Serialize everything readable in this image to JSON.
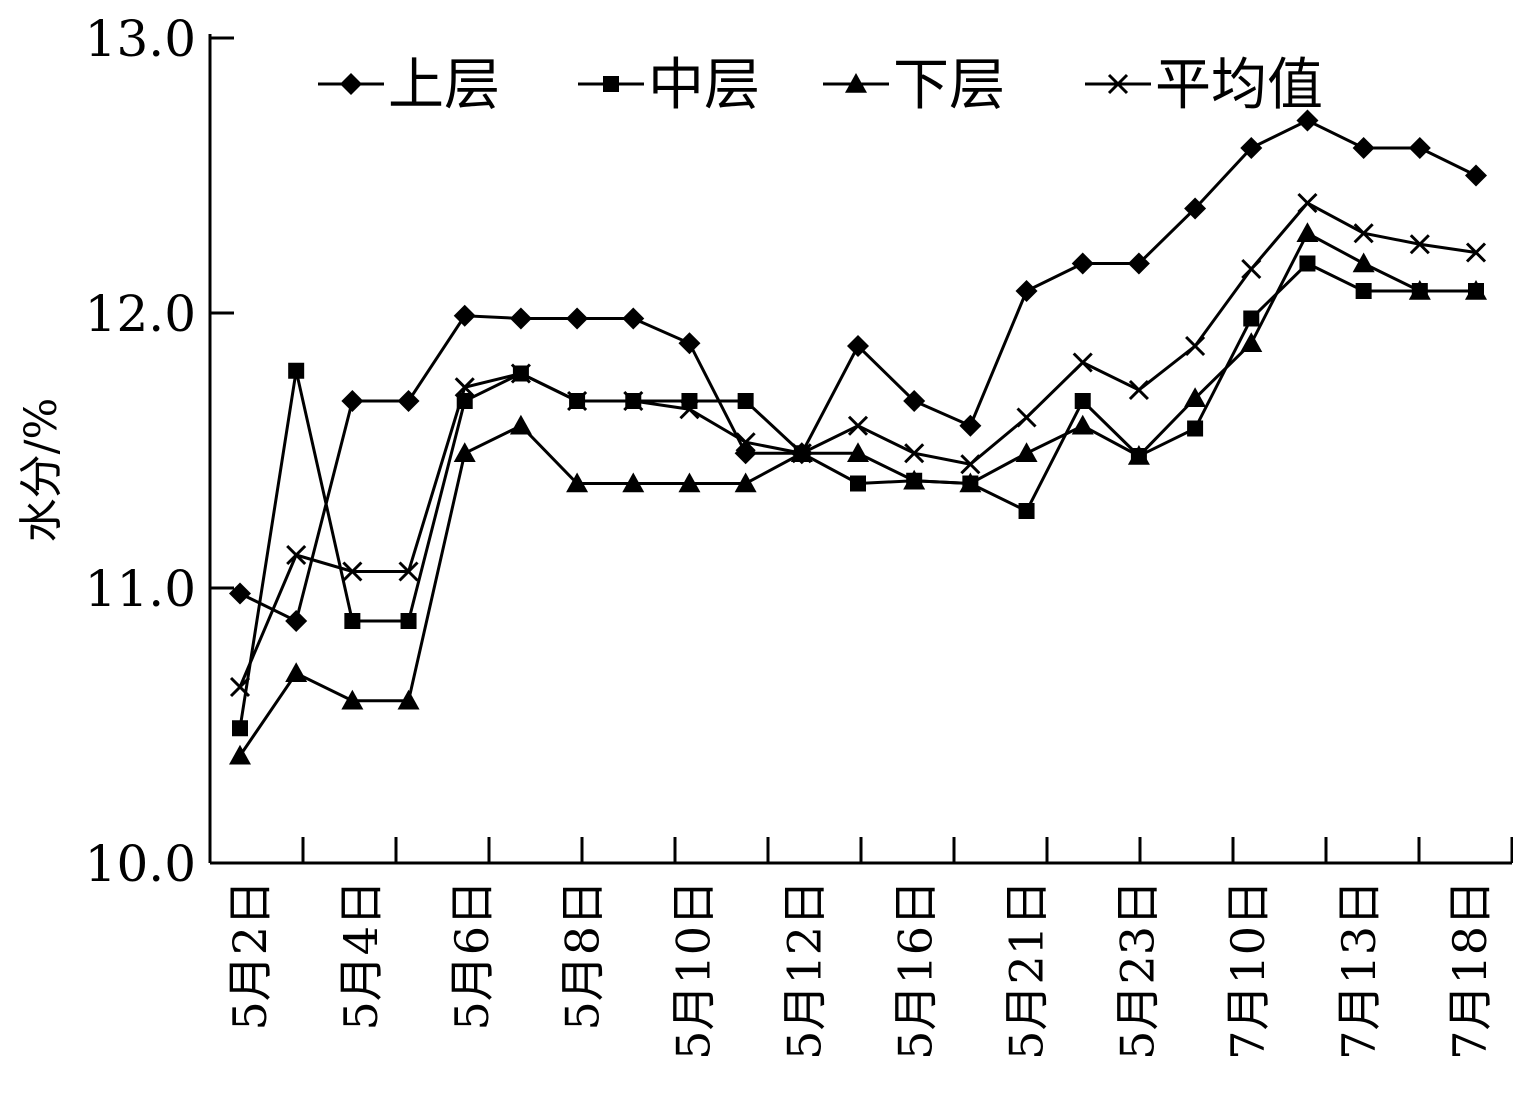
{
  "chart_data": {
    "type": "line",
    "title": "",
    "xlabel": "",
    "ylabel": "水分/%",
    "ylim": [
      10.0,
      13.0
    ],
    "yticks": [
      "10.0",
      "11.0",
      "12.0",
      "13.0"
    ],
    "grid": false,
    "legend_position": "top",
    "x_tick_labels": [
      "5月2日",
      "5月4日",
      "5月6日",
      "5月8日",
      "5月10日",
      "5月12日",
      "5月16日",
      "5月21日",
      "5月23日",
      "7月10日",
      "7月13日",
      "7月18日"
    ],
    "series": [
      {
        "name": "上层",
        "marker": "diamond",
        "values": [
          10.98,
          10.88,
          11.68,
          11.68,
          11.99,
          11.98,
          11.98,
          11.98,
          11.89,
          11.49,
          11.49,
          11.88,
          11.68,
          11.59,
          12.08,
          12.18,
          12.18,
          12.38,
          12.6,
          12.7,
          12.6,
          12.6,
          12.5
        ]
      },
      {
        "name": "中层",
        "marker": "square",
        "values": [
          10.49,
          11.79,
          10.88,
          10.88,
          11.68,
          11.78,
          11.68,
          11.68,
          11.68,
          11.68,
          11.49,
          11.38,
          11.39,
          11.38,
          11.28,
          11.68,
          11.48,
          11.58,
          11.98,
          12.18,
          12.08,
          12.08,
          12.08
        ]
      },
      {
        "name": "下层",
        "marker": "triangle",
        "values": [
          10.39,
          10.69,
          10.59,
          10.59,
          11.49,
          11.59,
          11.38,
          11.38,
          11.38,
          11.38,
          11.49,
          11.49,
          11.39,
          11.38,
          11.49,
          11.59,
          11.48,
          11.69,
          11.89,
          12.29,
          12.18,
          12.08,
          12.08
        ]
      },
      {
        "name": "平均值",
        "marker": "x",
        "values": [
          10.64,
          11.12,
          11.06,
          11.06,
          11.73,
          11.78,
          11.68,
          11.68,
          11.65,
          11.53,
          11.49,
          11.59,
          11.49,
          11.45,
          11.62,
          11.82,
          11.72,
          11.88,
          12.16,
          12.4,
          12.29,
          12.25,
          12.22
        ]
      }
    ]
  }
}
